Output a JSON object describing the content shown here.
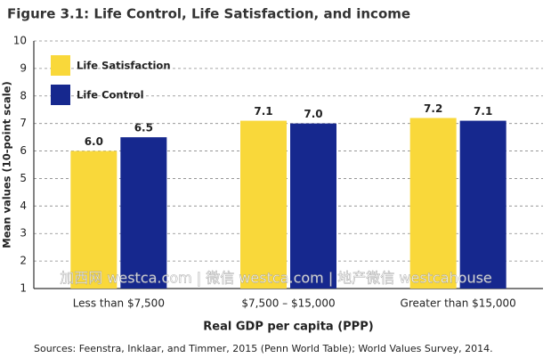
{
  "chart_data": {
    "type": "bar",
    "title": "Figure 3.1: Life Control, Life Satisfaction, and income",
    "y_label": "Mean values (10-point scale)",
    "x_label": "Real GDP per capita (PPP)",
    "source": "Sources: Feenstra, Inklaar, and Timmer, 2015 (Penn World Table); World Values Survey, 2014.",
    "watermark": "加西网 westca.com | 微信 westca.com | 地产微信 westcahouse",
    "categories": [
      "Less than $7,500",
      "$7,500 – $15,000",
      "Greater than $15,000"
    ],
    "series": [
      {
        "name": "Life Satisfaction",
        "color": "#f9d83a",
        "values": [
          6,
          7.1,
          7.2
        ],
        "value_labels": [
          "6.0",
          "7.1",
          "7.2"
        ]
      },
      {
        "name": "Life Control",
        "color": "#16288e",
        "values": [
          6.5,
          7,
          7.1
        ],
        "value_labels": [
          "6.5",
          "7.0",
          "7.1"
        ]
      }
    ],
    "ylim": [
      1,
      10
    ],
    "yticks": [
      1,
      2,
      3,
      4,
      5,
      6,
      7,
      8,
      9,
      10
    ],
    "grid": true,
    "legend": "top-left"
  }
}
